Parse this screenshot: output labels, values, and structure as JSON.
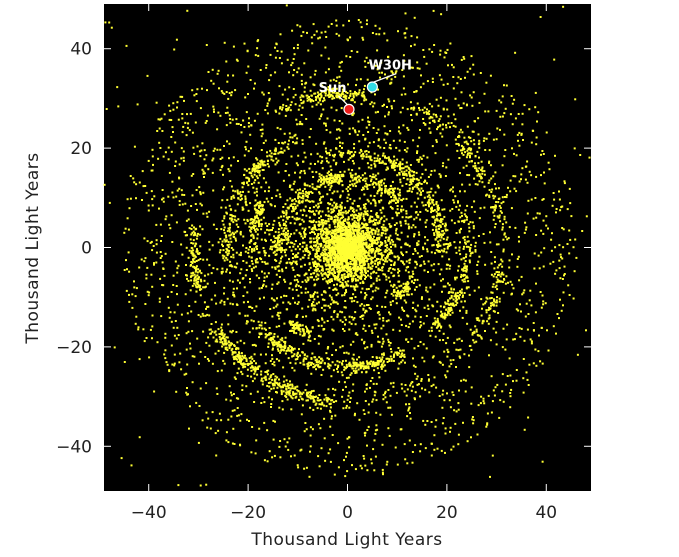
{
  "chart_data": {
    "type": "scatter",
    "title": "",
    "xlabel": "Thousand Light Years",
    "ylabel": "Thousand Light Years",
    "xlim": [
      -49,
      49
    ],
    "ylim": [
      -49,
      49
    ],
    "xticks": [
      -40,
      -20,
      0,
      20,
      40
    ],
    "yticks": [
      -40,
      -20,
      0,
      20,
      40
    ],
    "xtick_labels": [
      "−40",
      "−20",
      "0",
      "20",
      "40"
    ],
    "ytick_labels": [
      "−40",
      "−20",
      "0",
      "20",
      "40"
    ],
    "background": "#000000",
    "point_color": "#ffff33",
    "grid": false,
    "galaxy_model": {
      "description_of_marks": "thousands of yellow star points: dense central bulge plus fragmented spiral-arm rings and scattered disk stars",
      "bulge_radius": 6,
      "ring_radii": [
        14,
        19,
        24,
        31
      ]
    },
    "annotations": [
      {
        "label": "Sun",
        "x": 0.3,
        "y": 27.8,
        "color": "#ee1c1c",
        "label_x": -3.0,
        "label_y": 31.3
      },
      {
        "label": "W30H",
        "x": 5.0,
        "y": 32.3,
        "color": "#33dbe6",
        "label_x": 8.6,
        "label_y": 35.8
      }
    ]
  }
}
